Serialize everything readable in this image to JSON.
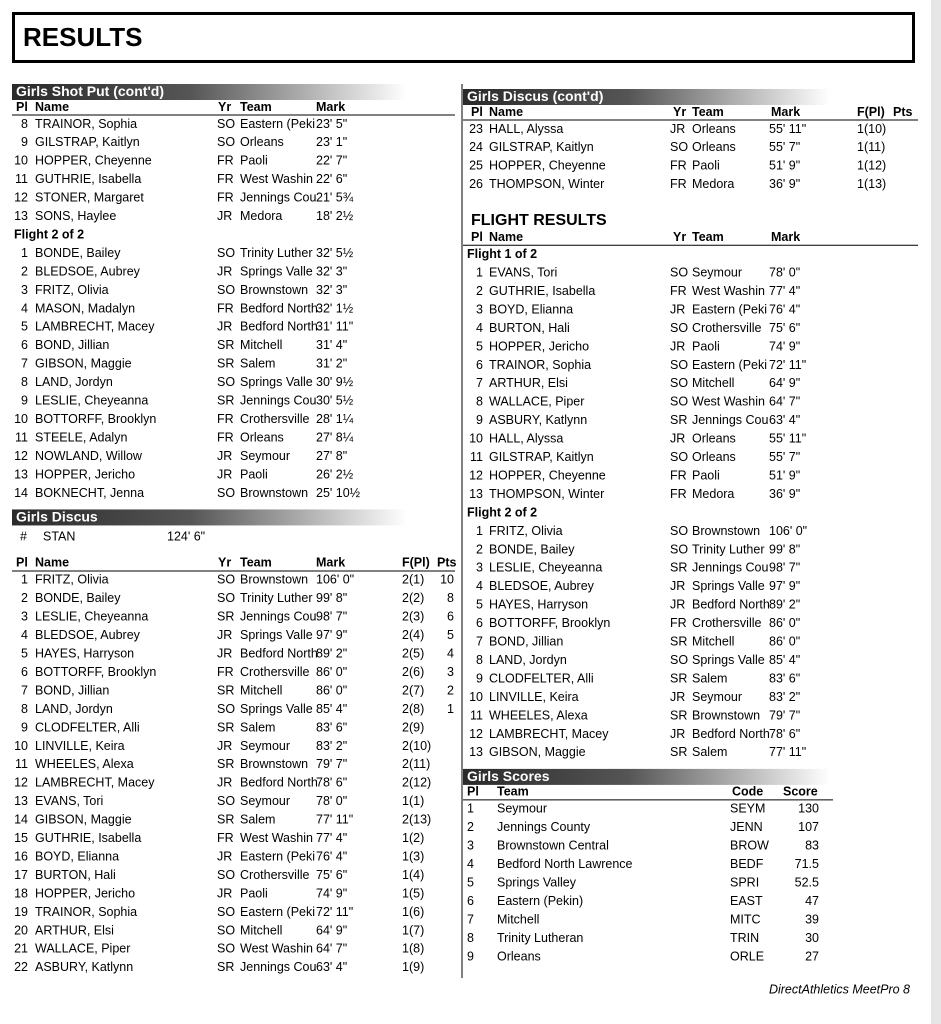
{
  "header": {
    "title": "RESULTS"
  },
  "panels": [
    {
      "blocks": [
        {
          "section": "Girls Shot Put (cont'd)"
        },
        {
          "columns": [
            "Pl",
            "Name",
            "Yr",
            "Team",
            "Mark"
          ]
        },
        {
          "rows": [
            [
              8,
              "TRAINOR, Sophia",
              "SO",
              "Eastern (Peki",
              "23' 5\""
            ],
            [
              9,
              "GILSTRAP, Kaitlyn",
              "SO",
              "Orleans",
              "23' 1\""
            ],
            [
              10,
              "HOPPER, Cheyenne",
              "FR",
              "Paoli",
              "22' 7\""
            ],
            [
              11,
              "GUTHRIE, Isabella",
              "FR",
              "West Washin",
              "22' 6\""
            ],
            [
              12,
              "STONER, Margaret",
              "FR",
              "Jennings Cou",
              "21' 5¾"
            ],
            [
              13,
              "SONS, Haylee",
              "JR",
              "Medora",
              "18' 2½"
            ]
          ]
        },
        {
          "flight": "Flight 2 of 2"
        },
        {
          "rows": [
            [
              1,
              "BONDE, Bailey",
              "SO",
              "Trinity Luther",
              "32' 5½"
            ],
            [
              2,
              "BLEDSOE, Aubrey",
              "JR",
              "Springs Valle",
              "32' 3\""
            ],
            [
              3,
              "FRITZ, Olivia",
              "SO",
              "Brownstown",
              "32' 3\""
            ],
            [
              4,
              "MASON, Madalyn",
              "FR",
              "Bedford North",
              "32' 1½"
            ],
            [
              5,
              "LAMBRECHT, Macey",
              "JR",
              "Bedford North",
              "31' 11\""
            ],
            [
              6,
              "BOND, Jillian",
              "SR",
              "Mitchell",
              "31' 4\""
            ],
            [
              7,
              "GIBSON, Maggie",
              "SR",
              "Salem",
              "31' 2\""
            ],
            [
              8,
              "LAND, Jordyn",
              "SO",
              "Springs Valle",
              "30' 9½"
            ],
            [
              9,
              "LESLIE, Cheyeanna",
              "SR",
              "Jennings Cou",
              "30' 5½"
            ],
            [
              10,
              "BOTTORFF, Brooklyn",
              "FR",
              "Crothersville",
              "28' 1¼"
            ],
            [
              11,
              "STEELE, Adalyn",
              "FR",
              "Orleans",
              "27' 8¼"
            ],
            [
              12,
              "NOWLAND, Willow",
              "JR",
              "Seymour",
              "27' 8\""
            ],
            [
              13,
              "HOPPER, Jericho",
              "JR",
              "Paoli",
              "26' 2½"
            ],
            [
              14,
              "BOKNECHT, Jenna",
              "SO",
              "Brownstown",
              "25' 10½"
            ]
          ]
        },
        {
          "section": "Girls Discus"
        },
        {
          "record": [
            "#",
            "STAN",
            "124' 6\""
          ]
        },
        {
          "columns": [
            "Pl",
            "Name",
            "Yr",
            "Team",
            "Mark",
            "F(Pl)",
            "Pts"
          ]
        },
        {
          "rows": [
            [
              1,
              "FRITZ, Olivia",
              "SO",
              "Brownstown",
              "106' 0\"",
              "2(1)",
              10
            ],
            [
              2,
              "BONDE, Bailey",
              "SO",
              "Trinity Luther",
              "99' 8\"",
              "2(2)",
              8
            ],
            [
              3,
              "LESLIE, Cheyeanna",
              "SR",
              "Jennings Cou",
              "98' 7\"",
              "2(3)",
              6
            ],
            [
              4,
              "BLEDSOE, Aubrey",
              "JR",
              "Springs Valle",
              "97' 9\"",
              "2(4)",
              5
            ],
            [
              5,
              "HAYES, Harryson",
              "JR",
              "Bedford North",
              "89' 2\"",
              "2(5)",
              4
            ],
            [
              6,
              "BOTTORFF, Brooklyn",
              "FR",
              "Crothersville",
              "86' 0\"",
              "2(6)",
              3
            ],
            [
              7,
              "BOND, Jillian",
              "SR",
              "Mitchell",
              "86' 0\"",
              "2(7)",
              2
            ],
            [
              8,
              "LAND, Jordyn",
              "SO",
              "Springs Valle",
              "85' 4\"",
              "2(8)",
              1
            ],
            [
              9,
              "CLODFELTER, Alli",
              "SR",
              "Salem",
              "83' 6\"",
              "2(9)"
            ],
            [
              10,
              "LINVILLE, Keira",
              "JR",
              "Seymour",
              "83' 2\"",
              "2(10)"
            ],
            [
              11,
              "WHEELES, Alexa",
              "SR",
              "Brownstown",
              "79' 7\"",
              "2(11)"
            ],
            [
              12,
              "LAMBRECHT, Macey",
              "JR",
              "Bedford North",
              "78' 6\"",
              "2(12)"
            ],
            [
              13,
              "EVANS, Tori",
              "SO",
              "Seymour",
              "78' 0\"",
              "1(1)"
            ],
            [
              14,
              "GIBSON, Maggie",
              "SR",
              "Salem",
              "77' 11\"",
              "2(13)"
            ],
            [
              15,
              "GUTHRIE, Isabella",
              "FR",
              "West Washin",
              "77' 4\"",
              "1(2)"
            ],
            [
              16,
              "BOYD, Elianna",
              "JR",
              "Eastern (Peki",
              "76' 4\"",
              "1(3)"
            ],
            [
              17,
              "BURTON, Hali",
              "SO",
              "Crothersville",
              "75' 6\"",
              "1(4)"
            ],
            [
              18,
              "HOPPER, Jericho",
              "JR",
              "Paoli",
              "74' 9\"",
              "1(5)"
            ],
            [
              19,
              "TRAINOR, Sophia",
              "SO",
              "Eastern (Peki",
              "72' 11\"",
              "1(6)"
            ],
            [
              20,
              "ARTHUR, Elsi",
              "SO",
              "Mitchell",
              "64' 9\"",
              "1(7)"
            ],
            [
              21,
              "WALLACE, Piper",
              "SO",
              "West Washin",
              "64' 7\"",
              "1(8)"
            ],
            [
              22,
              "ASBURY, Katlynn",
              "SR",
              "Jennings Cou",
              "63' 4\"",
              "1(9)"
            ]
          ]
        }
      ]
    },
    {
      "blocks": [
        {
          "section": "Girls Discus (cont'd)"
        },
        {
          "columns": [
            "Pl",
            "Name",
            "Yr",
            "Team",
            "Mark",
            "F(Pl)",
            "Pts"
          ]
        },
        {
          "rows": [
            [
              23,
              "HALL, Alyssa",
              "JR",
              "Orleans",
              "55' 11\"",
              "1(10)"
            ],
            [
              24,
              "GILSTRAP, Kaitlyn",
              "SO",
              "Orleans",
              "55' 7\"",
              "1(11)"
            ],
            [
              25,
              "HOPPER, Cheyenne",
              "FR",
              "Paoli",
              "51' 9\"",
              "1(12)"
            ],
            [
              26,
              "THOMPSON, Winter",
              "FR",
              "Medora",
              "36' 9\"",
              "1(13)"
            ]
          ]
        },
        {
          "heading": "FLIGHT RESULTS"
        },
        {
          "columns": [
            "Pl",
            "Name",
            "Yr",
            "Team",
            "Mark"
          ]
        },
        {
          "flight": "Flight 1 of 2"
        },
        {
          "rows": [
            [
              1,
              "EVANS, Tori",
              "SO",
              "Seymour",
              "78' 0\""
            ],
            [
              2,
              "GUTHRIE, Isabella",
              "FR",
              "West Washin",
              "77' 4\""
            ],
            [
              3,
              "BOYD, Elianna",
              "JR",
              "Eastern (Peki",
              "76' 4\""
            ],
            [
              4,
              "BURTON, Hali",
              "SO",
              "Crothersville",
              "75' 6\""
            ],
            [
              5,
              "HOPPER, Jericho",
              "JR",
              "Paoli",
              "74' 9\""
            ],
            [
              6,
              "TRAINOR, Sophia",
              "SO",
              "Eastern (Peki",
              "72' 11\""
            ],
            [
              7,
              "ARTHUR, Elsi",
              "SO",
              "Mitchell",
              "64' 9\""
            ],
            [
              8,
              "WALLACE, Piper",
              "SO",
              "West Washin",
              "64' 7\""
            ],
            [
              9,
              "ASBURY, Katlynn",
              "SR",
              "Jennings Cou",
              "63' 4\""
            ],
            [
              10,
              "HALL, Alyssa",
              "JR",
              "Orleans",
              "55' 11\""
            ],
            [
              11,
              "GILSTRAP, Kaitlyn",
              "SO",
              "Orleans",
              "55' 7\""
            ],
            [
              12,
              "HOPPER, Cheyenne",
              "FR",
              "Paoli",
              "51' 9\""
            ],
            [
              13,
              "THOMPSON, Winter",
              "FR",
              "Medora",
              "36' 9\""
            ]
          ]
        },
        {
          "flight": "Flight 2 of 2"
        },
        {
          "rows": [
            [
              1,
              "FRITZ, Olivia",
              "SO",
              "Brownstown",
              "106' 0\""
            ],
            [
              2,
              "BONDE, Bailey",
              "SO",
              "Trinity Luther",
              "99' 8\""
            ],
            [
              3,
              "LESLIE, Cheyeanna",
              "SR",
              "Jennings Cou",
              "98' 7\""
            ],
            [
              4,
              "BLEDSOE, Aubrey",
              "JR",
              "Springs Valle",
              "97' 9\""
            ],
            [
              5,
              "HAYES, Harryson",
              "JR",
              "Bedford North",
              "89' 2\""
            ],
            [
              6,
              "BOTTORFF, Brooklyn",
              "FR",
              "Crothersville",
              "86' 0\""
            ],
            [
              7,
              "BOND, Jillian",
              "SR",
              "Mitchell",
              "86' 0\""
            ],
            [
              8,
              "LAND, Jordyn",
              "SO",
              "Springs Valle",
              "85' 4\""
            ],
            [
              9,
              "CLODFELTER, Alli",
              "SR",
              "Salem",
              "83' 6\""
            ],
            [
              10,
              "LINVILLE, Keira",
              "JR",
              "Seymour",
              "83' 2\""
            ],
            [
              11,
              "WHEELES, Alexa",
              "SR",
              "Brownstown",
              "79' 7\""
            ],
            [
              12,
              "LAMBRECHT, Macey",
              "JR",
              "Bedford North",
              "78' 6\""
            ],
            [
              13,
              "GIBSON, Maggie",
              "SR",
              "Salem",
              "77' 11\""
            ]
          ]
        },
        {
          "section": "Girls Scores"
        },
        {
          "columns": [
            "Pl",
            "Team",
            "Code",
            "Score"
          ]
        },
        {
          "rows": [
            [
              1,
              "Seymour",
              "SEYM",
              130
            ],
            [
              2,
              "Jennings County",
              "JENN",
              107
            ],
            [
              3,
              "Brownstown Central",
              "BROW",
              83
            ],
            [
              4,
              "Bedford North Lawrence",
              "BEDF",
              71.5
            ],
            [
              5,
              "Springs Valley",
              "SPRI",
              52.5
            ],
            [
              6,
              "Eastern (Pekin)",
              "EAST",
              47
            ],
            [
              7,
              "Mitchell",
              "MITC",
              39
            ],
            [
              8,
              "Trinity Lutheran",
              "TRIN",
              30
            ],
            [
              9,
              "Orleans",
              "ORLE",
              27
            ]
          ]
        }
      ]
    }
  ],
  "footer": "DirectAthletics MeetPro 8"
}
